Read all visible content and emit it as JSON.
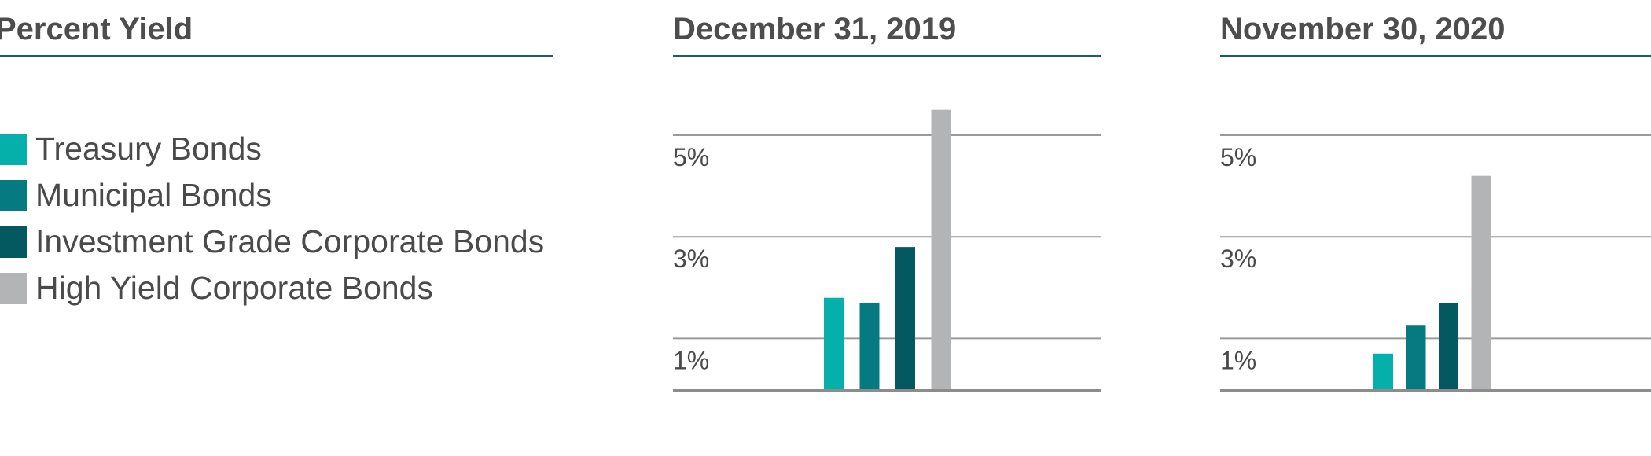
{
  "legend_title": "Percent Yield",
  "chart_data": [
    {
      "type": "bar",
      "title": "December 31, 2019",
      "categories": [
        "Treasury Bonds",
        "Municipal Bonds",
        "Investment Grade Corporate Bonds",
        "High Yield Corporate Bonds"
      ],
      "values": [
        1.8,
        1.7,
        2.8,
        5.5
      ],
      "yticks": [
        1,
        3,
        5
      ],
      "ytick_labels": [
        "1%",
        "3%",
        "5%"
      ],
      "ylim": [
        0,
        5.5
      ],
      "grid": true
    },
    {
      "type": "bar",
      "title": "November 30, 2020",
      "categories": [
        "Treasury Bonds",
        "Municipal Bonds",
        "Investment Grade Corporate Bonds",
        "High Yield Corporate Bonds"
      ],
      "values": [
        0.7,
        1.25,
        1.7,
        4.2
      ],
      "yticks": [
        1,
        3,
        5
      ],
      "ytick_labels": [
        "1%",
        "3%",
        "5%"
      ],
      "ylim": [
        0,
        5.5
      ],
      "grid": true
    }
  ],
  "legend": [
    {
      "label": "Treasury Bonds",
      "color": "#05b0aa"
    },
    {
      "label": "Municipal Bonds",
      "color": "#057a80"
    },
    {
      "label": "Investment Grade Corporate Bonds",
      "color": "#04585f"
    },
    {
      "label": "High Yield Corporate Bonds",
      "color": "#b3b4b6"
    }
  ],
  "colors": {
    "gridline": "#9a9a9a",
    "baseline": "#8c8c8c",
    "heading_rule": "#1f5f5b"
  }
}
